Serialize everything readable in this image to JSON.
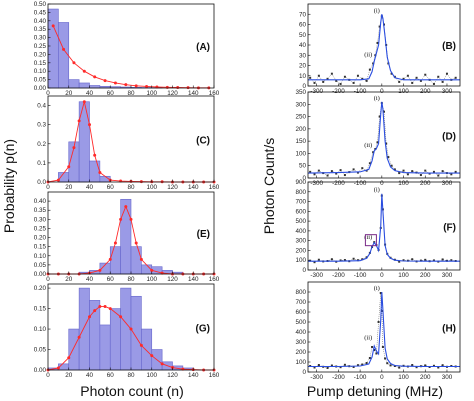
{
  "axes": {
    "left_ylabel": "Probability p(n)",
    "left_xlabel": "Photon count (n)",
    "right_ylabel": "Photon Count/s",
    "right_xlabel": "Pump detuning (MHz)"
  },
  "colors": {
    "bar_fill": "#9a9ae6",
    "bar_stroke": "#6666cc",
    "poisson_line": "#ff2a2a",
    "spectrum_fit": "#2a4de0",
    "spectrum_data": "#333333",
    "highlight_box": "#7a2a88"
  },
  "chart_data": [
    {
      "type": "bar",
      "label": "(A)",
      "xlim": [
        0,
        160
      ],
      "ylim": [
        0,
        0.5
      ],
      "xticks": [
        "0",
        "20",
        "40",
        "60",
        "80",
        "100",
        "120",
        "140",
        "160"
      ],
      "yticks": [
        "0.00",
        "0.05",
        "0.10",
        "0.15",
        "0.20",
        "0.25",
        "0.30",
        "0.35",
        "0.40",
        "0.45",
        "0.50"
      ],
      "bin_width": 10,
      "bins": [
        0,
        10,
        20,
        30,
        40,
        50,
        60,
        70,
        80,
        90,
        100
      ],
      "values": [
        0.47,
        0.39,
        0.05,
        0.03,
        0.015,
        0.01,
        0.008,
        0.006,
        0.004,
        0.003,
        0.002
      ],
      "poisson": {
        "x": [
          5,
          15,
          25,
          35,
          45,
          55,
          65,
          75,
          85,
          95,
          105,
          115,
          125,
          135,
          145,
          155
        ],
        "y": [
          0.37,
          0.23,
          0.15,
          0.1,
          0.066,
          0.044,
          0.03,
          0.02,
          0.013,
          0.009,
          0.006,
          0.004,
          0.003,
          0.002,
          0.001,
          0.001
        ]
      }
    },
    {
      "type": "bar",
      "label": "(C)",
      "xlim": [
        0,
        160
      ],
      "ylim": [
        0,
        0.45
      ],
      "xticks": [
        "0",
        "20",
        "40",
        "60",
        "80",
        "100",
        "120",
        "140",
        "160"
      ],
      "yticks": [
        "0.0",
        "0.1",
        "0.2",
        "0.3",
        "0.4"
      ],
      "bin_width": 10,
      "bins": [
        10,
        20,
        30,
        40,
        50
      ],
      "values": [
        0.05,
        0.21,
        0.42,
        0.11,
        0.03
      ],
      "poisson": {
        "x": [
          0,
          10,
          20,
          25,
          30,
          35,
          40,
          45,
          50,
          60,
          70,
          80,
          90,
          100,
          110,
          120,
          130,
          140,
          150,
          160
        ],
        "y": [
          0.0,
          0.01,
          0.08,
          0.18,
          0.32,
          0.42,
          0.3,
          0.14,
          0.05,
          0.01,
          0.005,
          0.003,
          0.002,
          0.001,
          0.001,
          0.0,
          0.0,
          0.0,
          0.0,
          0.0
        ]
      }
    },
    {
      "type": "bar",
      "label": "(E)",
      "xlim": [
        0,
        160
      ],
      "ylim": [
        0,
        0.45
      ],
      "xticks": [
        "0",
        "20",
        "40",
        "60",
        "80",
        "100",
        "120",
        "140",
        "160"
      ],
      "yticks": [
        "0.00",
        "0.05",
        "0.10",
        "0.15",
        "0.20",
        "0.25",
        "0.30",
        "0.35",
        "0.40"
      ],
      "bin_width": 10,
      "bins": [
        30,
        40,
        50,
        60,
        70,
        80,
        90,
        100,
        110,
        120
      ],
      "values": [
        0.01,
        0.02,
        0.06,
        0.15,
        0.41,
        0.15,
        0.05,
        0.04,
        0.02,
        0.01
      ],
      "poisson": {
        "x": [
          0,
          10,
          20,
          30,
          40,
          50,
          60,
          65,
          70,
          75,
          80,
          85,
          90,
          100,
          110,
          120,
          130,
          140,
          150,
          160
        ],
        "y": [
          0.0,
          0.0,
          0.0,
          0.0,
          0.005,
          0.02,
          0.08,
          0.17,
          0.3,
          0.37,
          0.3,
          0.17,
          0.08,
          0.02,
          0.005,
          0.0,
          0.0,
          0.0,
          0.0,
          0.0
        ]
      }
    },
    {
      "type": "bar",
      "label": "(G)",
      "xlim": [
        0,
        160
      ],
      "ylim": [
        0,
        0.21
      ],
      "xticks": [
        "0",
        "20",
        "40",
        "60",
        "80",
        "100",
        "120",
        "140",
        "160"
      ],
      "yticks": [
        "0.00",
        "0.05",
        "0.10",
        "0.15",
        "0.20"
      ],
      "bin_width": 10,
      "bins": [
        0,
        10,
        20,
        30,
        40,
        50,
        60,
        70,
        80,
        90,
        100,
        110,
        120,
        130
      ],
      "values": [
        0.005,
        0.015,
        0.1,
        0.2,
        0.17,
        0.11,
        0.15,
        0.2,
        0.18,
        0.1,
        0.05,
        0.02,
        0.01,
        0.005
      ],
      "poisson": {
        "x": [
          0,
          10,
          20,
          30,
          40,
          45,
          50,
          55,
          60,
          70,
          80,
          90,
          100,
          110,
          120,
          130,
          140,
          150,
          160
        ],
        "y": [
          0.0,
          0.005,
          0.03,
          0.08,
          0.13,
          0.145,
          0.155,
          0.155,
          0.15,
          0.13,
          0.1,
          0.06,
          0.035,
          0.015,
          0.006,
          0.002,
          0.001,
          0.0,
          0.0
        ]
      }
    },
    {
      "type": "line",
      "label": "(B)",
      "xlim": [
        -340,
        360
      ],
      "ylim": [
        0,
        80
      ],
      "xticks": [
        "-300",
        "-200",
        "-100",
        "0",
        "100",
        "200",
        "300"
      ],
      "yticks": [
        "0",
        "10",
        "20",
        "30",
        "40",
        "50",
        "60",
        "70"
      ],
      "peak_labels": [
        "(i)",
        "(ii)"
      ],
      "fit": {
        "x": [
          -340,
          -200,
          -100,
          -60,
          -45,
          -35,
          -25,
          -15,
          -5,
          0,
          5,
          15,
          25,
          40,
          60,
          100,
          200,
          360
        ],
        "y": [
          6,
          6,
          6,
          7,
          14,
          24,
          32,
          40,
          62,
          70,
          66,
          48,
          28,
          15,
          8,
          6,
          6,
          6
        ]
      },
      "data": {
        "x": [
          -330,
          -310,
          -290,
          -270,
          -250,
          -230,
          -210,
          -190,
          -170,
          -150,
          -130,
          -110,
          -90,
          -70,
          -55,
          -40,
          -30,
          -20,
          -10,
          0,
          10,
          20,
          30,
          45,
          60,
          80,
          100,
          120,
          140,
          160,
          180,
          200,
          220,
          240,
          260,
          280,
          300,
          320,
          340
        ],
        "y": [
          8,
          3,
          10,
          4,
          7,
          12,
          5,
          2,
          9,
          6,
          3,
          10,
          7,
          5,
          16,
          22,
          30,
          42,
          58,
          68,
          60,
          40,
          22,
          12,
          9,
          4,
          7,
          10,
          3,
          8,
          5,
          11,
          6,
          2,
          9,
          4,
          12,
          6,
          8
        ]
      }
    },
    {
      "type": "line",
      "label": "(D)",
      "xlim": [
        -340,
        360
      ],
      "ylim": [
        0,
        350
      ],
      "xticks": [
        "-300",
        "-200",
        "-100",
        "0",
        "100",
        "200",
        "300"
      ],
      "yticks": [
        "0",
        "50",
        "100",
        "150",
        "200",
        "250",
        "300",
        "350"
      ],
      "peak_labels": [
        "(i)",
        "(ii)"
      ],
      "fit": {
        "x": [
          -340,
          -200,
          -100,
          -60,
          -45,
          -35,
          -25,
          -15,
          -5,
          0,
          5,
          15,
          25,
          40,
          60,
          100,
          200,
          360
        ],
        "y": [
          20,
          22,
          25,
          35,
          70,
          110,
          120,
          140,
          260,
          310,
          280,
          150,
          80,
          45,
          30,
          22,
          20,
          20
        ]
      },
      "data": {
        "x": [
          -330,
          -310,
          -290,
          -270,
          -250,
          -230,
          -210,
          -190,
          -170,
          -150,
          -130,
          -110,
          -90,
          -70,
          -55,
          -40,
          -30,
          -20,
          -10,
          0,
          10,
          20,
          30,
          45,
          60,
          80,
          100,
          120,
          140,
          160,
          180,
          200,
          220,
          240,
          260,
          280,
          300,
          320,
          340
        ],
        "y": [
          25,
          15,
          30,
          20,
          10,
          28,
          18,
          32,
          12,
          24,
          35,
          22,
          40,
          30,
          60,
          105,
          118,
          145,
          250,
          305,
          270,
          140,
          85,
          50,
          35,
          20,
          30,
          15,
          28,
          22,
          12,
          30,
          18,
          25,
          10,
          28,
          20,
          15,
          25
        ]
      }
    },
    {
      "type": "line",
      "label": "(F)",
      "xlim": [
        -340,
        360
      ],
      "ylim": [
        0,
        900
      ],
      "xticks": [
        "-300",
        "-200",
        "-100",
        "0",
        "100",
        "200",
        "300"
      ],
      "yticks": [
        "0",
        "100",
        "200",
        "300",
        "400",
        "500",
        "600",
        "700",
        "800",
        "900"
      ],
      "peak_labels": [
        "(i)",
        "(ii)"
      ],
      "fit": {
        "x": [
          -340,
          -200,
          -100,
          -70,
          -55,
          -45,
          -35,
          -25,
          -15,
          -5,
          0,
          5,
          15,
          25,
          40,
          60,
          100,
          200,
          360
        ],
        "y": [
          90,
          90,
          95,
          120,
          170,
          240,
          280,
          250,
          200,
          450,
          780,
          600,
          250,
          160,
          120,
          100,
          92,
          90,
          90
        ]
      },
      "data": {
        "x": [
          -330,
          -310,
          -290,
          -270,
          -250,
          -230,
          -210,
          -190,
          -170,
          -150,
          -130,
          -110,
          -90,
          -70,
          -55,
          -45,
          -35,
          -25,
          -15,
          -5,
          0,
          5,
          15,
          25,
          40,
          60,
          80,
          100,
          120,
          140,
          160,
          180,
          200,
          220,
          240,
          260,
          280,
          300,
          320,
          340
        ],
        "y": [
          95,
          80,
          105,
          88,
          92,
          110,
          85,
          98,
          102,
          90,
          115,
          100,
          110,
          130,
          175,
          235,
          285,
          255,
          205,
          430,
          760,
          620,
          260,
          165,
          125,
          105,
          85,
          100,
          95,
          110,
          88,
          96,
          104,
          90,
          98,
          86,
          108,
          94,
          100,
          92
        ]
      }
    },
    {
      "type": "line",
      "label": "(H)",
      "xlim": [
        -340,
        360
      ],
      "ylim": [
        0,
        900
      ],
      "xticks": [
        "-300",
        "-200",
        "-100",
        "0",
        "100",
        "200",
        "300"
      ],
      "yticks": [
        "0",
        "100",
        "200",
        "300",
        "400",
        "500",
        "600",
        "700",
        "800"
      ],
      "peak_labels": [
        "(i)",
        "(ii)"
      ],
      "fit": {
        "x": [
          -340,
          -200,
          -100,
          -60,
          -45,
          -35,
          -25,
          -15,
          -5,
          0,
          5,
          15,
          25,
          40,
          60,
          100,
          200,
          360
        ],
        "y": [
          55,
          55,
          60,
          80,
          150,
          260,
          210,
          180,
          520,
          800,
          620,
          240,
          130,
          85,
          65,
          58,
          55,
          55
        ]
      },
      "data": {
        "x": [
          -330,
          -310,
          -290,
          -270,
          -250,
          -230,
          -210,
          -190,
          -170,
          -150,
          -130,
          -110,
          -90,
          -70,
          -55,
          -45,
          -35,
          -25,
          -15,
          -5,
          0,
          5,
          15,
          25,
          40,
          60,
          80,
          100,
          120,
          140,
          160,
          180,
          200,
          220,
          240,
          260,
          280,
          300,
          320,
          340
        ],
        "y": [
          60,
          45,
          70,
          52,
          40,
          65,
          55,
          48,
          72,
          58,
          50,
          68,
          75,
          90,
          140,
          250,
          220,
          185,
          500,
          790,
          610,
          250,
          135,
          88,
          66,
          60,
          44,
          62,
          55,
          70,
          48,
          58,
          66,
          50,
          62,
          45,
          68,
          52,
          60,
          55
        ]
      }
    }
  ]
}
